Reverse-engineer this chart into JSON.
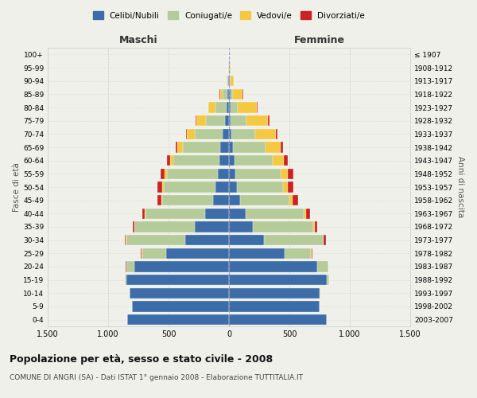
{
  "age_groups": [
    "0-4",
    "5-9",
    "10-14",
    "15-19",
    "20-24",
    "25-29",
    "30-34",
    "35-39",
    "40-44",
    "45-49",
    "50-54",
    "55-59",
    "60-64",
    "65-69",
    "70-74",
    "75-79",
    "80-84",
    "85-89",
    "90-94",
    "95-99",
    "100+"
  ],
  "birth_years": [
    "2003-2007",
    "1998-2002",
    "1993-1997",
    "1988-1992",
    "1983-1987",
    "1978-1982",
    "1973-1977",
    "1968-1972",
    "1963-1967",
    "1958-1962",
    "1953-1957",
    "1948-1952",
    "1943-1947",
    "1938-1942",
    "1933-1937",
    "1928-1932",
    "1923-1927",
    "1918-1922",
    "1913-1917",
    "1908-1912",
    "≤ 1907"
  ],
  "colors": {
    "celibe": "#3d6da8",
    "coniugato": "#b5cb99",
    "vedovo": "#f5c842",
    "divorziato": "#cc2222"
  },
  "maschi": {
    "celibe": [
      840,
      800,
      820,
      850,
      780,
      520,
      360,
      280,
      200,
      130,
      110,
      90,
      80,
      70,
      50,
      30,
      20,
      15,
      5,
      2,
      2
    ],
    "coniugato": [
      1,
      2,
      5,
      10,
      70,
      200,
      490,
      500,
      490,
      420,
      430,
      420,
      380,
      310,
      230,
      160,
      90,
      35,
      10,
      2,
      0
    ],
    "vedovo": [
      0,
      0,
      0,
      0,
      1,
      2,
      2,
      3,
      5,
      10,
      15,
      20,
      30,
      50,
      70,
      80,
      60,
      25,
      8,
      2,
      0
    ],
    "divorziato": [
      0,
      0,
      0,
      0,
      2,
      5,
      10,
      15,
      20,
      30,
      35,
      35,
      25,
      10,
      8,
      5,
      3,
      2,
      0,
      0,
      0
    ]
  },
  "femmine": {
    "nubile": [
      810,
      750,
      750,
      810,
      730,
      460,
      290,
      200,
      140,
      90,
      65,
      55,
      45,
      30,
      20,
      15,
      12,
      10,
      5,
      3,
      2
    ],
    "coniugata": [
      1,
      2,
      5,
      20,
      90,
      220,
      490,
      500,
      480,
      410,
      380,
      370,
      320,
      270,
      200,
      130,
      60,
      25,
      8,
      2,
      0
    ],
    "vedova": [
      0,
      0,
      0,
      0,
      2,
      3,
      5,
      8,
      15,
      25,
      40,
      60,
      90,
      130,
      170,
      180,
      160,
      80,
      25,
      5,
      0
    ],
    "divorziata": [
      0,
      0,
      0,
      0,
      3,
      8,
      15,
      25,
      35,
      45,
      50,
      45,
      30,
      15,
      10,
      8,
      3,
      2,
      0,
      0,
      0
    ]
  },
  "title": "Popolazione per età, sesso e stato civile - 2008",
  "subtitle": "COMUNE DI ANGRI (SA) - Dati ISTAT 1° gennaio 2008 - Elaborazione TUTTITALIA.IT",
  "xlabel_left": "Maschi",
  "xlabel_right": "Femmine",
  "ylabel_left": "Fasce di età",
  "ylabel_right": "Anni di nascita",
  "xlim": 1500,
  "xticklabels": [
    "1.500",
    "1.000",
    "500",
    "0",
    "500",
    "1.000",
    "1.500"
  ],
  "legend_labels": [
    "Celibi/Nubili",
    "Coniugati/e",
    "Vedovi/e",
    "Divorziati/e"
  ],
  "legend_colors": [
    "#3d6da8",
    "#b5cb99",
    "#f5c842",
    "#cc2222"
  ],
  "bg_color": "#f0f0eb"
}
